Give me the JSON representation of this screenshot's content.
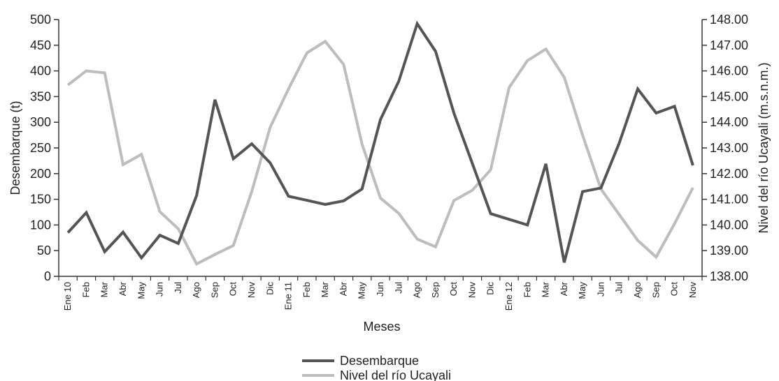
{
  "chart_data": {
    "type": "line",
    "xlabel": "Meses",
    "ylabel_left": "Desembarque (t)",
    "ylabel_right": "Nivel del río Ucayali (m.s.n.m.)",
    "ylim_left": [
      0,
      500
    ],
    "ylim_right": [
      138.0,
      148.0
    ],
    "yticks_left": [
      "0",
      "50",
      "100",
      "150",
      "200",
      "250",
      "300",
      "350",
      "400",
      "450",
      "500"
    ],
    "yticks_right": [
      "138.00",
      "139.00",
      "140.00",
      "141.00",
      "142.00",
      "143.00",
      "144.00",
      "145.00",
      "146.00",
      "147.00",
      "148.00"
    ],
    "categories": [
      "Ene 10",
      "Feb",
      "Mar",
      "Abr",
      "May",
      "Jun",
      "Jul",
      "Ago",
      "Sep",
      "Oct",
      "Nov",
      "Dic",
      "Ene 11",
      "Feb",
      "Mar",
      "Abr",
      "May",
      "Jun",
      "Jul",
      "Ago",
      "Sep",
      "Oct",
      "Nov",
      "Dic",
      "Ene 12",
      "Feb",
      "Mar",
      "Abr",
      "May",
      "Jun",
      "Jul",
      "Ago",
      "Sep",
      "Oct",
      "Nov"
    ],
    "grid": false,
    "legend_position": "bottom-center",
    "series": [
      {
        "name": "Desembarque",
        "axis": "left",
        "color": "#555555",
        "values": [
          85,
          124,
          48,
          86,
          36,
          80,
          64,
          157,
          344,
          229,
          258,
          221,
          156,
          148,
          140,
          147,
          170,
          305,
          380,
          492,
          438,
          318,
          220,
          122,
          111,
          100,
          219,
          27,
          165,
          172,
          260,
          365,
          318,
          331,
          216
        ]
      },
      {
        "name": "Nivel del río Ucayali",
        "axis": "right",
        "color": "#bdbdbd",
        "values": [
          145.45,
          146.0,
          145.92,
          142.35,
          142.75,
          140.52,
          139.85,
          138.48,
          138.85,
          139.2,
          141.3,
          143.8,
          145.3,
          146.7,
          147.15,
          146.25,
          143.15,
          141.05,
          140.45,
          139.45,
          139.15,
          140.95,
          141.35,
          142.15,
          145.35,
          146.4,
          146.85,
          145.75,
          143.5,
          141.4,
          140.4,
          139.4,
          138.75,
          140.05,
          141.45
        ]
      }
    ]
  }
}
